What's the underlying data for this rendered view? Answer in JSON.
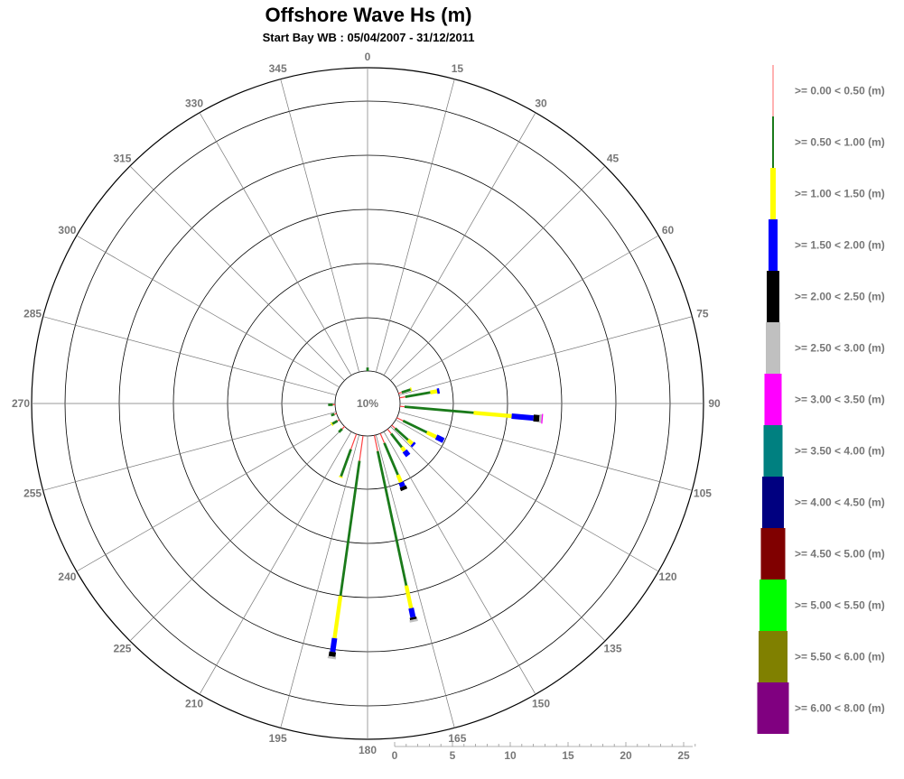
{
  "chart_data": {
    "type": "wind-rose",
    "title": "Offshore Wave Hs (m)",
    "subtitle": "Start Bay WB : 05/04/2007 - 31/12/2011",
    "center_label": "10%",
    "direction_labels": [
      "0",
      "15",
      "30",
      "45",
      "60",
      "75",
      "90",
      "105",
      "120",
      "135",
      "150",
      "165",
      "180",
      "195",
      "210",
      "225",
      "240",
      "255",
      "270",
      "285",
      "300",
      "315",
      "330",
      "345"
    ],
    "scale_ticks": [
      "0",
      "5",
      "10",
      "15",
      "20",
      "25"
    ],
    "legend": [
      {
        "label": ">= 0.00 < 0.50 (m)",
        "color": "#ff4040"
      },
      {
        "label": ">= 0.50 < 1.00 (m)",
        "color": "#1a7a1a"
      },
      {
        "label": ">= 1.00 < 1.50 (m)",
        "color": "#ffff00"
      },
      {
        "label": ">= 1.50 < 2.00 (m)",
        "color": "#0000ff"
      },
      {
        "label": ">= 2.00 < 2.50 (m)",
        "color": "#000000"
      },
      {
        "label": ">= 2.50 < 3.00 (m)",
        "color": "#c0c0c0"
      },
      {
        "label": ">= 3.00 < 3.50 (m)",
        "color": "#ff00ff"
      },
      {
        "label": ">= 3.50 < 4.00 (m)",
        "color": "#008080"
      },
      {
        "label": ">= 4.00 < 4.50 (m)",
        "color": "#000080"
      },
      {
        "label": ">= 4.50 < 5.00 (m)",
        "color": "#800000"
      },
      {
        "label": ">= 5.00 < 5.50 (m)",
        "color": "#00ff00"
      },
      {
        "label": ">= 5.50 < 6.00 (m)",
        "color": "#808000"
      },
      {
        "label": ">= 6.00 < 8.00 (m)",
        "color": "#800080"
      }
    ],
    "sectors": [
      {
        "direction": 0,
        "segments": [
          0,
          0.3
        ]
      },
      {
        "direction": 72,
        "segments": [
          0.3,
          0.8,
          0.1
        ]
      },
      {
        "direction": 80,
        "segments": [
          0.5,
          2.2,
          0.6,
          0.2
        ]
      },
      {
        "direction": 95,
        "segments": [
          0.4,
          6.0,
          3.3,
          1.9,
          0.5,
          0.2,
          0.1
        ]
      },
      {
        "direction": 116,
        "segments": [
          0.6,
          2.3,
          0.9,
          0.7
        ]
      },
      {
        "direction": 132,
        "segments": [
          0.4,
          1.5,
          0.5,
          0.2
        ]
      },
      {
        "direction": 142,
        "segments": [
          0.5,
          1.5,
          0.4,
          0.5
        ]
      },
      {
        "direction": 157,
        "segments": [
          0.9,
          3.0,
          0.7,
          0.4,
          0.3
        ]
      },
      {
        "direction": 168,
        "segments": [
          1.4,
          11.9,
          2.0,
          0.8,
          0.2,
          0.2
        ]
      },
      {
        "direction": 188,
        "segments": [
          2.2,
          11.8,
          3.7,
          1.2,
          0.4,
          0.2
        ]
      },
      {
        "direction": 200,
        "segments": [
          1.4,
          2.5,
          0.1
        ]
      },
      {
        "direction": 225,
        "segments": [
          0.3,
          0.4
        ]
      },
      {
        "direction": 240,
        "segments": [
          0.2,
          0.5,
          0.1
        ]
      },
      {
        "direction": 252,
        "segments": [
          0.2,
          0.3
        ]
      },
      {
        "direction": 268,
        "segments": [
          0.2,
          0.4
        ]
      }
    ]
  }
}
